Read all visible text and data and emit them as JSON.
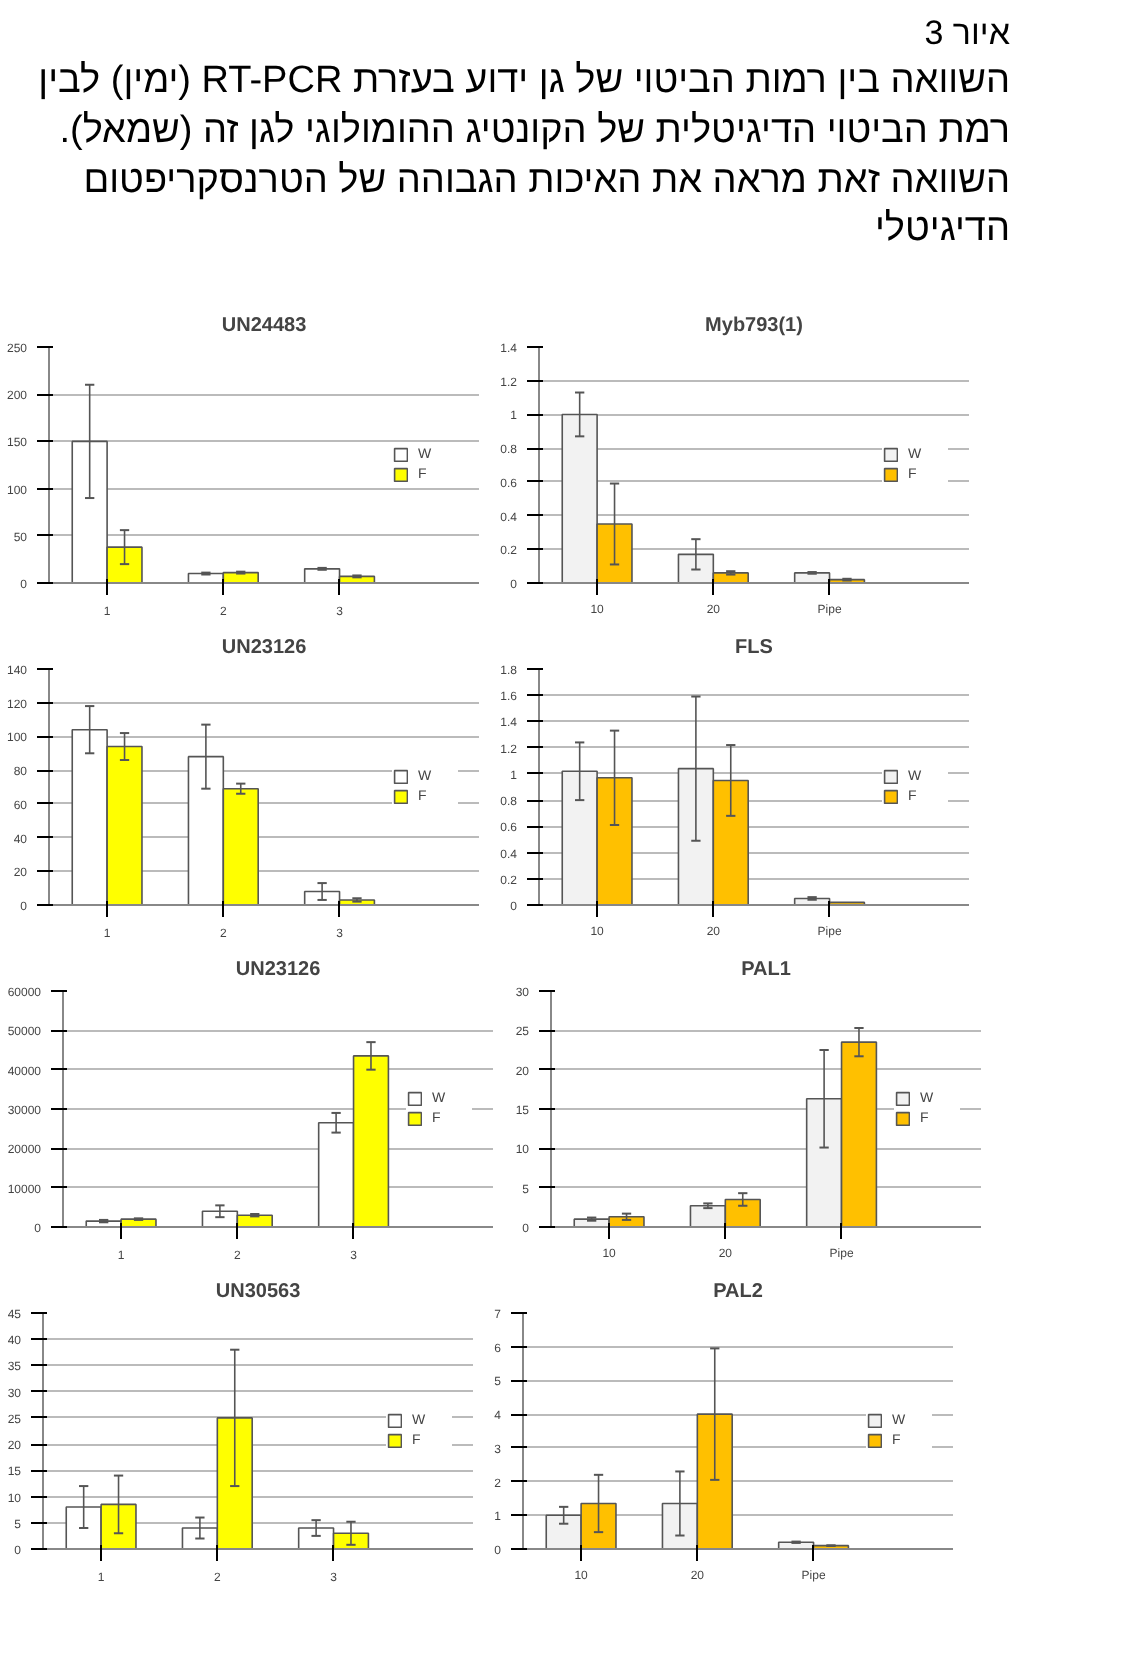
{
  "chart_data": [
    {
      "type": "other",
      "title": "איור 3",
      "subtitle": "השוואה בין רמות הביטוי של גן ידוע בעזרת RT-PCR (ימין) לבין רמת הביטוי הדיגיטלית של הקונטיג ההומולוגי לגן זה (שמאל). השוואה זאת מראה את האיכות הגבוהה של הטרנסקריפטום הדיגיטלי"
    },
    {
      "type": "bar",
      "title": "UN24483",
      "categories": [
        "1",
        "2",
        "3"
      ],
      "ylim": [
        0,
        250
      ],
      "yticks": [
        0,
        50,
        100,
        150,
        200,
        250
      ],
      "grid": "y",
      "legend": "right",
      "series": [
        {
          "name": "W",
          "color": "#ffffff",
          "values": [
            150,
            10,
            15
          ],
          "errors": [
            60,
            1,
            1
          ]
        },
        {
          "name": "F",
          "color": "#ffff00",
          "values": [
            38,
            11,
            7
          ],
          "errors": [
            18,
            1,
            1
          ]
        }
      ]
    },
    {
      "type": "bar",
      "title": "Myb793(1)",
      "categories": [
        "10",
        "20",
        "Pipe"
      ],
      "ylim": [
        0,
        1.4
      ],
      "yticks": [
        0,
        0.2,
        0.4,
        0.6,
        0.8,
        1,
        1.2,
        1.4
      ],
      "grid": "y",
      "legend": "right",
      "series": [
        {
          "name": "W",
          "color": "#f2f2f2",
          "values": [
            1.0,
            0.17,
            0.06
          ],
          "errors": [
            0.13,
            0.09,
            0.005
          ]
        },
        {
          "name": "F",
          "color": "#ffc000",
          "values": [
            0.35,
            0.06,
            0.02
          ],
          "errors": [
            0.24,
            0.01,
            0.005
          ]
        }
      ]
    },
    {
      "type": "bar",
      "title": "UN23126",
      "categories": [
        "1",
        "2",
        "3"
      ],
      "ylim": [
        0,
        140
      ],
      "yticks": [
        0,
        20,
        40,
        60,
        80,
        100,
        120,
        140
      ],
      "grid": "y",
      "legend": "right",
      "series": [
        {
          "name": "W",
          "color": "#ffffff",
          "values": [
            104,
            88,
            8
          ],
          "errors": [
            14,
            19,
            5
          ]
        },
        {
          "name": "F",
          "color": "#ffff00",
          "values": [
            94,
            69,
            3
          ],
          "errors": [
            8,
            3,
            1
          ]
        }
      ]
    },
    {
      "type": "bar",
      "title": "FLS",
      "categories": [
        "10",
        "20",
        "Pipe"
      ],
      "ylim": [
        0,
        1.8
      ],
      "yticks": [
        0,
        0.2,
        0.4,
        0.6,
        0.8,
        1,
        1.2,
        1.4,
        1.6,
        1.8
      ],
      "grid": "y",
      "legend": "right",
      "series": [
        {
          "name": "W",
          "color": "#f2f2f2",
          "values": [
            1.02,
            1.04,
            0.05
          ],
          "errors": [
            0.22,
            0.55,
            0.01
          ]
        },
        {
          "name": "F",
          "color": "#ffc000",
          "values": [
            0.97,
            0.95,
            0.02
          ],
          "errors": [
            0.36,
            0.27,
            null
          ]
        }
      ]
    },
    {
      "type": "bar",
      "title": "UN23126",
      "categories": [
        "1",
        "2",
        "3"
      ],
      "ylim": [
        0,
        60000
      ],
      "yticks": [
        0,
        10000,
        20000,
        30000,
        40000,
        50000,
        60000
      ],
      "grid": "y",
      "legend": "right",
      "series": [
        {
          "name": "W",
          "color": "#ffffff",
          "values": [
            1500,
            4000,
            26500
          ],
          "errors": [
            300,
            1500,
            2500
          ]
        },
        {
          "name": "F",
          "color": "#ffff00",
          "values": [
            2000,
            3000,
            43500
          ],
          "errors": [
            200,
            300,
            3500
          ]
        }
      ]
    },
    {
      "type": "bar",
      "title": "PAL1",
      "categories": [
        "10",
        "20",
        "Pipe"
      ],
      "ylim": [
        0,
        30
      ],
      "yticks": [
        0,
        5,
        10,
        15,
        20,
        25,
        30
      ],
      "grid": "y",
      "legend": "right",
      "series": [
        {
          "name": "W",
          "color": "#f2f2f2",
          "values": [
            1,
            2.7,
            16.3
          ],
          "errors": [
            0.2,
            0.3,
            6.2
          ]
        },
        {
          "name": "F",
          "color": "#ffc000",
          "values": [
            1.3,
            3.5,
            23.5
          ],
          "errors": [
            0.4,
            0.8,
            1.8
          ]
        }
      ]
    },
    {
      "type": "bar",
      "title": "UN30563",
      "categories": [
        "1",
        "2",
        "3"
      ],
      "ylim": [
        0,
        45
      ],
      "yticks": [
        0,
        5,
        10,
        15,
        20,
        25,
        30,
        35,
        40,
        45
      ],
      "grid": "y",
      "legend": "right",
      "series": [
        {
          "name": "W",
          "color": "#ffffff",
          "values": [
            8,
            4,
            4
          ],
          "errors": [
            4,
            2,
            1.5
          ]
        },
        {
          "name": "F",
          "color": "#ffff00",
          "values": [
            8.5,
            25,
            3
          ],
          "errors": [
            5.5,
            13,
            2.2
          ]
        }
      ]
    },
    {
      "type": "bar",
      "title": "PAL2",
      "categories": [
        "10",
        "20",
        "Pipe"
      ],
      "ylim": [
        0,
        7
      ],
      "yticks": [
        0,
        1,
        2,
        3,
        4,
        5,
        6,
        7
      ],
      "grid": "y",
      "legend": "right",
      "series": [
        {
          "name": "W",
          "color": "#f2f2f2",
          "values": [
            1.0,
            1.35,
            0.2
          ],
          "errors": [
            0.25,
            0.95,
            0.02
          ]
        },
        {
          "name": "F",
          "color": "#ffc000",
          "values": [
            1.35,
            4.0,
            0.1
          ],
          "errors": [
            0.85,
            1.95,
            0.01
          ]
        }
      ]
    }
  ]
}
